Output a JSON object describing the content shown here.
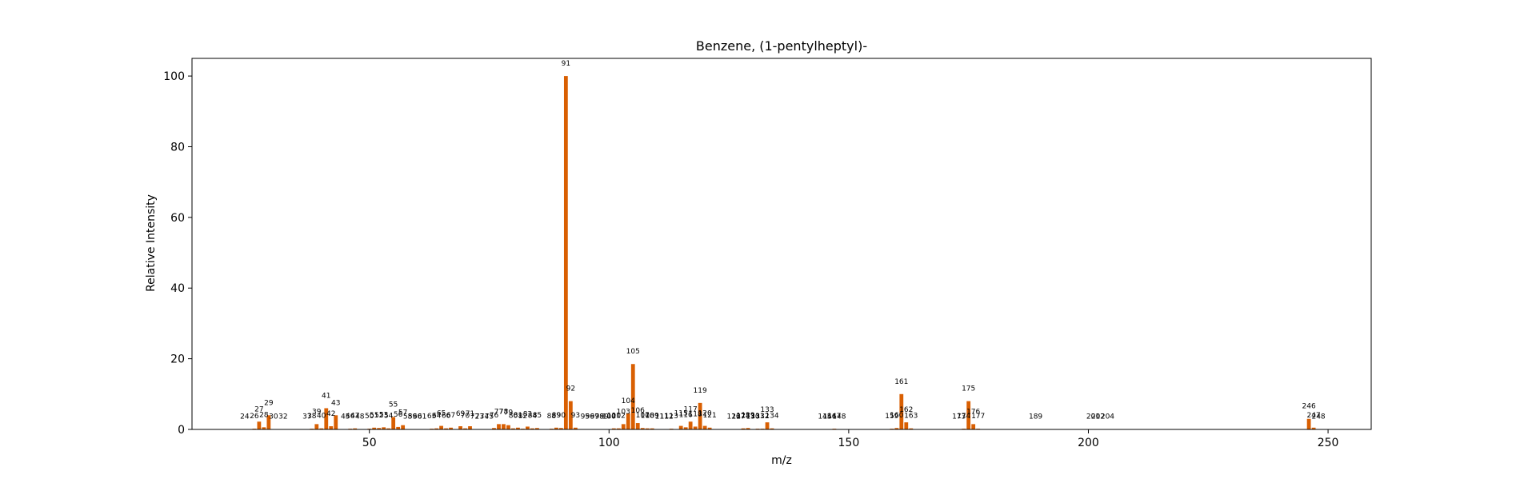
{
  "chart_data": {
    "type": "bar",
    "title": "Benzene, (1-pentylheptyl)-",
    "xlabel": "m/z",
    "ylabel": "Relative Intensity",
    "xlim": [
      13,
      259
    ],
    "ylim": [
      0,
      105
    ],
    "xticks": [
      50,
      100,
      150,
      200,
      250
    ],
    "yticks": [
      0,
      20,
      40,
      60,
      80,
      100
    ],
    "grid": false,
    "bar_color": "#d95f02",
    "series": [
      {
        "x": [
          24,
          26,
          27,
          28,
          29,
          30,
          32,
          37,
          38,
          39,
          40,
          41,
          42,
          43,
          45,
          46,
          47,
          48,
          50,
          51,
          52,
          53,
          54,
          55,
          56,
          57,
          58,
          59,
          60,
          61,
          63,
          64,
          65,
          66,
          67,
          69,
          70,
          71,
          72,
          73,
          74,
          75,
          76,
          77,
          78,
          79,
          80,
          81,
          82,
          83,
          84,
          85,
          88,
          89,
          90,
          91,
          92,
          93,
          95,
          96,
          97,
          98,
          99,
          100,
          101,
          102,
          103,
          104,
          105,
          106,
          107,
          108,
          109,
          111,
          112,
          113,
          115,
          116,
          117,
          118,
          119,
          120,
          121,
          126,
          127,
          128,
          129,
          130,
          131,
          132,
          133,
          134,
          145,
          146,
          147,
          148,
          159,
          160,
          161,
          162,
          163,
          173,
          174,
          175,
          176,
          177,
          189,
          201,
          202,
          204,
          246,
          247,
          248
        ],
        "values": [
          0.1,
          0.2,
          2.2,
          0.6,
          4.0,
          0.1,
          0.1,
          0.1,
          0.2,
          1.5,
          0.3,
          6.0,
          0.9,
          4.0,
          0.1,
          0.2,
          0.3,
          0.1,
          0.2,
          0.5,
          0.4,
          0.6,
          0.3,
          3.5,
          0.7,
          1.2,
          0.1,
          0.1,
          0.1,
          0.1,
          0.2,
          0.3,
          1.0,
          0.3,
          0.5,
          0.9,
          0.3,
          0.9,
          0.1,
          0.1,
          0.1,
          0.1,
          0.4,
          1.5,
          1.5,
          1.2,
          0.3,
          0.5,
          0.2,
          0.8,
          0.3,
          0.4,
          0.2,
          0.5,
          0.4,
          100,
          8.0,
          0.5,
          0.1,
          0.1,
          0.1,
          0.1,
          0.1,
          0.1,
          0.3,
          0.3,
          1.5,
          4.5,
          18.5,
          1.8,
          0.4,
          0.3,
          0.3,
          0.1,
          0.1,
          0.2,
          1.0,
          0.6,
          2.2,
          0.8,
          7.5,
          1.0,
          0.5,
          0.1,
          0.1,
          0.3,
          0.4,
          0.1,
          0.2,
          0.2,
          2.0,
          0.3,
          0.1,
          0.1,
          0.2,
          0.1,
          0.2,
          0.4,
          10.0,
          2.0,
          0.3,
          0.1,
          0.2,
          8.0,
          1.5,
          0.2,
          0.1,
          0.1,
          0.1,
          0.1,
          3.0,
          0.5,
          0.1
        ]
      }
    ]
  }
}
